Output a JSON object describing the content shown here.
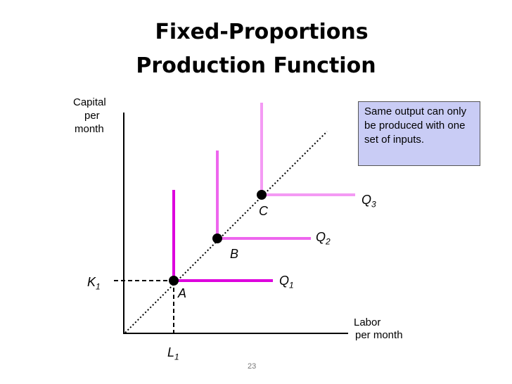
{
  "title": {
    "line1": "Fixed-Proportions",
    "line2": "Production Function"
  },
  "y_axis_label": [
    "Capital",
    "per",
    "month"
  ],
  "x_axis_label": [
    "Labor",
    "per month"
  ],
  "note": {
    "text": "Same output can only be produced with one set of inputs.",
    "background": "#c9ccf5"
  },
  "points": [
    {
      "name": "A",
      "curve": "Q",
      "sub": "1"
    },
    {
      "name": "B",
      "curve": "Q",
      "sub": "2"
    },
    {
      "name": "C",
      "curve": "Q",
      "sub": "3"
    }
  ],
  "axis_marks": {
    "k": {
      "letter": "K",
      "sub": "1"
    },
    "l": {
      "letter": "L",
      "sub": "1"
    }
  },
  "colors": {
    "q1": "#dd00dd",
    "q2": "#ee66ee",
    "q3": "#f49af4"
  },
  "page_number": "23"
}
